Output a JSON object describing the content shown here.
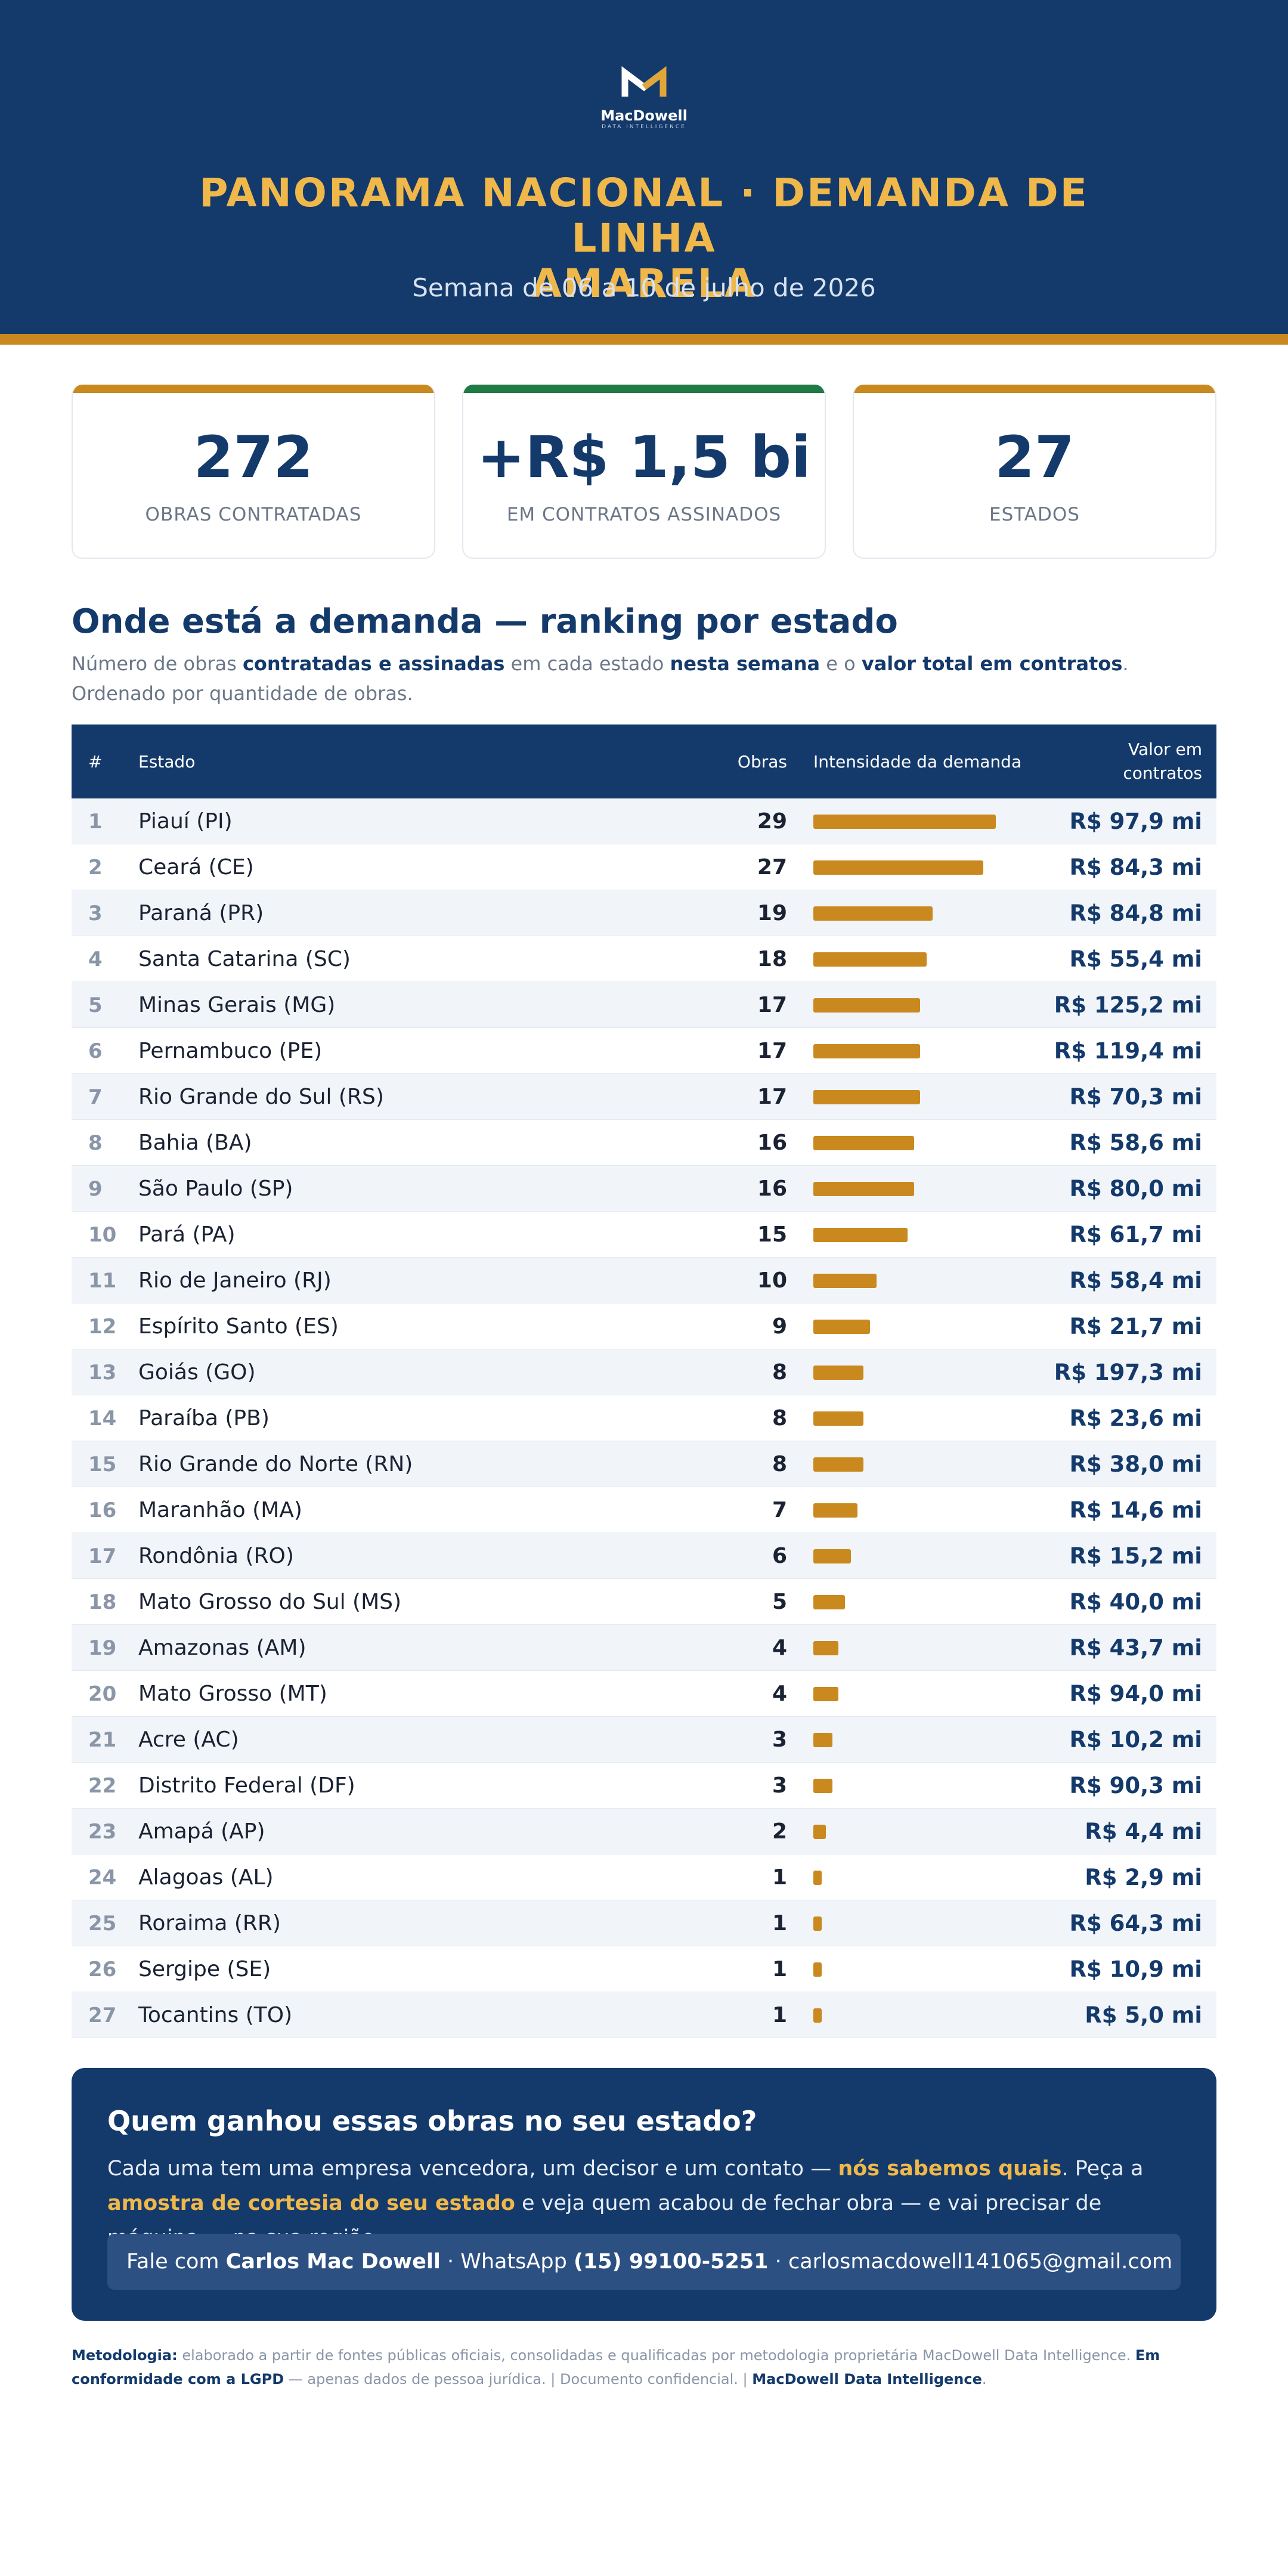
{
  "brand": {
    "name": "MacDowell",
    "tagline": "DATA INTELLIGENCE"
  },
  "header": {
    "title_line1": "PANORAMA NACIONAL · DEMANDA DE LINHA",
    "title_line2": "AMARELA",
    "subtitle": "Semana de 06 a 10 de julho de 2026"
  },
  "kpis": [
    {
      "value": "272",
      "label": "OBRAS CONTRATADAS",
      "accent": "#c9891f"
    },
    {
      "value": "+R$ 1,5 bi",
      "label": "EM CONTRATOS ASSINADOS",
      "accent": "#1f7a45"
    },
    {
      "value": "27",
      "label": "ESTADOS",
      "accent": "#c9891f"
    }
  ],
  "section": {
    "title": "Onde está a demanda — ranking por estado",
    "desc_1": "Número de obras ",
    "desc_b1": "contratadas e assinadas",
    "desc_2": " em cada estado ",
    "desc_b2": "nesta semana",
    "desc_3": " e o ",
    "desc_b3": "valor total em contratos",
    "desc_4": ". Ordenado por quantidade de obras."
  },
  "table": {
    "headers": {
      "rank": "#",
      "state": "Estado",
      "count": "Obras",
      "bar": "Intensidade da demanda",
      "value": "Valor em contratos"
    },
    "max_count": 29,
    "rows": [
      {
        "rank": "1",
        "state": "Piauí (PI)",
        "count": 29,
        "value": "R$ 97,9 mi"
      },
      {
        "rank": "2",
        "state": "Ceará (CE)",
        "count": 27,
        "value": "R$ 84,3 mi"
      },
      {
        "rank": "3",
        "state": "Paraná (PR)",
        "count": 19,
        "value": "R$ 84,8 mi"
      },
      {
        "rank": "4",
        "state": "Santa Catarina (SC)",
        "count": 18,
        "value": "R$ 55,4 mi"
      },
      {
        "rank": "5",
        "state": "Minas Gerais (MG)",
        "count": 17,
        "value": "R$ 125,2 mi"
      },
      {
        "rank": "6",
        "state": "Pernambuco (PE)",
        "count": 17,
        "value": "R$ 119,4 mi"
      },
      {
        "rank": "7",
        "state": "Rio Grande do Sul (RS)",
        "count": 17,
        "value": "R$ 70,3 mi"
      },
      {
        "rank": "8",
        "state": "Bahia (BA)",
        "count": 16,
        "value": "R$ 58,6 mi"
      },
      {
        "rank": "9",
        "state": "São Paulo (SP)",
        "count": 16,
        "value": "R$ 80,0 mi"
      },
      {
        "rank": "10",
        "state": "Pará (PA)",
        "count": 15,
        "value": "R$ 61,7 mi"
      },
      {
        "rank": "11",
        "state": "Rio de Janeiro (RJ)",
        "count": 10,
        "value": "R$ 58,4 mi"
      },
      {
        "rank": "12",
        "state": "Espírito Santo (ES)",
        "count": 9,
        "value": "R$ 21,7 mi"
      },
      {
        "rank": "13",
        "state": "Goiás (GO)",
        "count": 8,
        "value": "R$ 197,3 mi"
      },
      {
        "rank": "14",
        "state": "Paraíba (PB)",
        "count": 8,
        "value": "R$ 23,6 mi"
      },
      {
        "rank": "15",
        "state": "Rio Grande do Norte (RN)",
        "count": 8,
        "value": "R$ 38,0 mi"
      },
      {
        "rank": "16",
        "state": "Maranhão (MA)",
        "count": 7,
        "value": "R$ 14,6 mi"
      },
      {
        "rank": "17",
        "state": "Rondônia (RO)",
        "count": 6,
        "value": "R$ 15,2 mi"
      },
      {
        "rank": "18",
        "state": "Mato Grosso do Sul (MS)",
        "count": 5,
        "value": "R$ 40,0 mi"
      },
      {
        "rank": "19",
        "state": "Amazonas (AM)",
        "count": 4,
        "value": "R$ 43,7 mi"
      },
      {
        "rank": "20",
        "state": "Mato Grosso (MT)",
        "count": 4,
        "value": "R$ 94,0 mi"
      },
      {
        "rank": "21",
        "state": "Acre (AC)",
        "count": 3,
        "value": "R$ 10,2 mi"
      },
      {
        "rank": "22",
        "state": "Distrito Federal (DF)",
        "count": 3,
        "value": "R$ 90,3 mi"
      },
      {
        "rank": "23",
        "state": "Amapá (AP)",
        "count": 2,
        "value": "R$ 4,4 mi"
      },
      {
        "rank": "24",
        "state": "Alagoas (AL)",
        "count": 1,
        "value": "R$ 2,9 mi"
      },
      {
        "rank": "25",
        "state": "Roraima (RR)",
        "count": 1,
        "value": "R$ 64,3 mi"
      },
      {
        "rank": "26",
        "state": "Sergipe (SE)",
        "count": 1,
        "value": "R$ 10,9 mi"
      },
      {
        "rank": "27",
        "state": "Tocantins (TO)",
        "count": 1,
        "value": "R$ 5,0 mi"
      }
    ]
  },
  "cta": {
    "title": "Quem ganhou essas obras no seu estado?",
    "text_1": "Cada uma tem uma empresa vencedora, um decisor e um contato — ",
    "text_b1": "nós sabemos quais",
    "text_2": ". Peça a ",
    "text_b2": "amostra de cortesia do seu estado",
    "text_3": " e veja quem acabou de fechar obra — e vai precisar de máquina — na sua região.",
    "contact_prefix": "Fale com ",
    "contact_name": "Carlos Mac Dowell",
    "contact_mid": " · WhatsApp ",
    "contact_phone": "(15) 99100-5251",
    "contact_sep": " · ",
    "contact_email": "carlosmacdowell141065@gmail.com"
  },
  "footer": {
    "label": "Metodologia:",
    "text_1": " elaborado a partir de fontes públicas oficiais, consolidadas e qualificadas por metodologia proprietária MacDowell Data Intelligence. ",
    "bold_1": "Em conformidade com a LGPD",
    "text_2": " — apenas dados de pessoa jurídica.  |  Documento confidencial.  |  ",
    "bold_2": "MacDowell Data Intelligence",
    "text_3": "."
  },
  "colors": {
    "navy": "#143a6b",
    "gold": "#c9891f",
    "title_gold": "#f0b84a",
    "green": "#1f7a45"
  }
}
